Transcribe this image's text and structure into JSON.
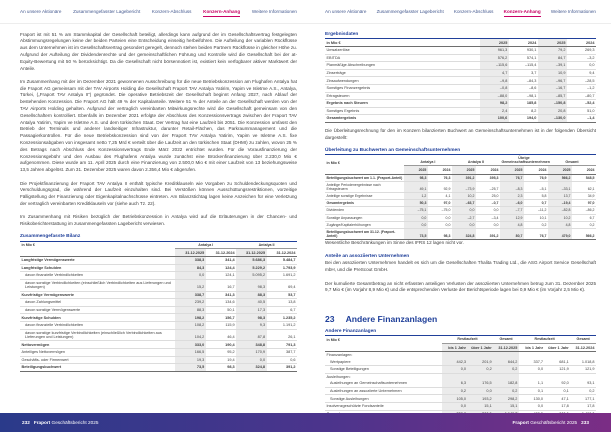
{
  "nav": {
    "tabs": [
      {
        "label": "An unsere Aktionäre",
        "active": false
      },
      {
        "label": "Zusammengefasster Lagebericht",
        "active": false
      },
      {
        "label": "Konzern-Abschluss",
        "active": false
      },
      {
        "label": "Konzern-Anhang",
        "active": true
      },
      {
        "label": "Weitere Informationen",
        "active": false
      }
    ]
  },
  "colors": {
    "accent_blue": "#20409a",
    "active_magenta": "#c80064",
    "footer_gradient_start": "#2a3a8a",
    "footer_gradient_end": "#7b2d85",
    "shaded_column": "#ebebeb"
  },
  "left_page": {
    "paragraphs": [
      "Fraport ist mit 51 % am Stammkapital der Gesellschaft beteiligt, allerdings kann aufgrund der im Gesellschaftsvertrag festgelegten Abstimmungsregelungen keine der beiden Parteien eine Entscheidung einseitig herbeiführen. Die Aufteilung der variablen Rückflüsse aus dem Unternehmen ist im Gesellschaftsvertrag gesondert geregelt, dennoch stehen beiden Partnern Rückflüsse in gleicher Höhe zu. Aufgrund der Aufteilung der Dividendenrechte und der gemeinschaftlichen Führung und Kontrolle wird die Gesellschaft bei der at-Equity-Bewertung mit 50 % berücksichtigt. Da die Gesellschaft nicht börsennotiert ist, existiert kein verfügbarer aktiver Marktwert der Anteile.",
      "Im Zusammenhang mit der im Dezember 2021 gewonnenen Ausschreibung für die neue Betriebskonzession am Flughafen Antalya hat die Fraport AG gemeinsam mit der TAV Airports Holding die Gesellschaft Fraport TAV Antalya Yatirim, Yapim ve Isletme A.S., Antalya, Türkei, („Fraport TAV Antalya II“) gegründet. Die operative Betriebszeit der Gesellschaft beginnt Anfang 2027, nach Ablauf der bestehenden Konzession. Die Fraport AG hält 49 % der Kapitalanteile. Weitere 51 % der Anteile an der Gesellschaft werden von der TAV Airports Holding gehalten. Aufgrund der vertraglich vereinbarten Mitwirkungsrechte wird die Gesellschaft gemeinsam von den Gesellschaftern kontrolliert. Ebenfalls im Dezember 2021 erfolgte der Abschluss des Konzessionsvertrags zwischen der Fraport TAV Antalya Yatirim, Yapim ve Isletme A.S. und dem türkischen Staat. Der Vertrag hat eine Laufzeit bis 2051. Die Konzession umfasst den Betrieb der Terminals und anderer landseitiger Infrastruktur, darunter Retail-Flächen, das Parkraummanagement und die Passagierkontrollen. Für die neue Betriebskonzession sind von der Fraport TAV Antalya Yatirim, Yapim ve Isletme A.S. fixe Konzessionsabgaben von insgesamt netto 7,25 Mrd € verteilt über die Laufzeit an den türkischen Staat (DHMI) zu zahlen, wovon 25 % des Betrags nach Abschluss des Konzessionsvertrags Ende März 2022 entrichtet wurden. Für die Vorausfinanzierung der Konzessionsgebühr und den Ausbau des Flughafens Antalya wurde zunächst eine Brückenfinanzierung über 2.230,0 Mio € aufgenommen. Diese wurde am 11. April 2025 durch eine Finanzierung von 2.500,0 Mio € mit einer Laufzeit von 13 beziehungsweise 13,5 Jahren abgelöst. Zum 31. Dezember 2025 waren davon 2.356,4 Mio € abgerufen.",
      "Die Projektfinanzierung der Fraport TAV Antalya II enthält typische Kreditklauseln wie Vorgaben zu Schuldendeckungsquoten und Verschuldungsgrad, die während der Laufzeit einzuhalten sind. Bei Verstößen können Ausschüttungsrestriktionen, vorzeitige Fälligstellung der Finanzierung oder Eigenkapitalnachschüsse eintreten. Am Bilanzstichtag lagen keine Anzeichen für eine Verletzung der vertraglich vereinbarten Kreditklauseln vor (siehe auch Tz. 22).",
      "Im Zusammenhang mit Risiken bezüglich der Betriebskonzession in Antalya wird auf die Erläuterungen in der Chancen- und Risikoberichterstattung im zusammengefassten Lagebericht verwiesen."
    ],
    "balance_table": {
      "title": "Zusammengefasste Bilanz",
      "unit_label": "in Mio €",
      "col_groups": [
        {
          "label": "Antalya I",
          "span": 2
        },
        {
          "label": "Antalya II",
          "span": 2
        }
      ],
      "col_headers": [
        "31.12.2025",
        "31.12.2024",
        "31.12.2025",
        "31.12.2024"
      ],
      "shaded_cols": [
        0,
        2
      ],
      "rows": [
        {
          "label": "Langfristige Vermögenswerte",
          "style": "bold",
          "values": [
            "338,3",
            "341,4",
            "5.686,3",
            "5.484,7"
          ]
        },
        {
          "label": "Langfristige Schulden",
          "style": "bold",
          "values": [
            "84,3",
            "124,4",
            "5.229,2",
            "1.793,9"
          ]
        },
        {
          "label": "davon finanzielle Verbindlichkeiten",
          "style": "indent",
          "values": [
            "0,0",
            "124,1",
            "5.095,2",
            "1.691,2"
          ]
        },
        {
          "label": "davon sonstige Verbindlichkeiten (einschließlich Verbindlichkeiten aus Lieferungen und Leistungen)",
          "style": "indent",
          "values": [
            "15,2",
            "16,7",
            "98,3",
            "69,4"
          ]
        },
        {
          "label": "Kurzfristige Vermögenswerte",
          "style": "bold",
          "values": [
            "338,7",
            "341,3",
            "88,3",
            "53,7"
          ]
        },
        {
          "label": "davon Zahlungsmittel",
          "style": "indent",
          "values": [
            "239,2",
            "134,6",
            "40,5",
            "13,8"
          ]
        },
        {
          "label": "davon sonstige Vermögenswerte",
          "style": "indent",
          "values": [
            "88,3",
            "50,1",
            "17,3",
            "6,7"
          ]
        },
        {
          "label": "Kurzfristige Schulden",
          "style": "bold",
          "values": [
            "198,2",
            "156,7",
            "98,3",
            "1.235,2"
          ]
        },
        {
          "label": "davon finanzielle Verbindlichkeiten",
          "style": "indent",
          "values": [
            "108,2",
            "115,9",
            "9,3",
            "1.191,2"
          ]
        },
        {
          "label": "davon sonstige kurzfristige Verbindlichkeiten (einschließlich Verbindlichkeiten aus Lieferungen und Leistungen)",
          "style": "indent",
          "values": [
            "104,2",
            "46,4",
            "87,8",
            "26,1"
          ]
        },
        {
          "label": "Nettovermögen",
          "style": "bold",
          "values": [
            "333,0",
            "190,4",
            "348,8",
            "791,3"
          ]
        },
        {
          "label": "Anteiliges Nettovermögen",
          "style": "",
          "values": [
            "166,5",
            "95,2",
            "170,9",
            "387,7"
          ]
        },
        {
          "label": "Geschäfts- oder Firmenwert",
          "style": "",
          "values": [
            "19,3",
            "19,4",
            "0,0",
            "0,6"
          ]
        },
        {
          "label": "Beteiligungsbuchwert",
          "style": "bold last",
          "values": [
            "73,5",
            "98,3",
            "324,8",
            "391,2"
          ]
        }
      ]
    }
  },
  "right_page": {
    "results_table": {
      "title": "Ergebnisdaten",
      "unit_label": "in Mio €",
      "col_headers": [
        "2025",
        "2024",
        "2025",
        "2024"
      ],
      "shaded_cols": [
        0,
        2
      ],
      "rows": [
        {
          "label": "Umsatzerlöse",
          "style": "",
          "values": [
            "961,3",
            "930,1",
            "79,2",
            "269,3"
          ]
        },
        {
          "label": "EBITDA",
          "style": "",
          "values": [
            "576,2",
            "574,1",
            "84,7",
            "–3,2"
          ]
        },
        {
          "label": "Planmäßige Abschreibungen",
          "style": "",
          "values": [
            "–115,6",
            "–115,4",
            "–39,1",
            "0,0"
          ]
        },
        {
          "label": "Zinserträge",
          "style": "",
          "values": [
            "4,7",
            "3,7",
            "10,9",
            "9,4"
          ]
        },
        {
          "label": "Zinsaufwendungen",
          "style": "",
          "values": [
            "–9,8",
            "–84,3",
            "–96,7",
            "–28,5"
          ]
        },
        {
          "label": "Sonstiges Finanzergebnis",
          "style": "",
          "values": [
            "–0,8",
            "–8,6",
            "–16,7",
            "–1,2"
          ]
        },
        {
          "label": "Ertragsteuern",
          "style": "",
          "values": [
            "–88,0",
            "–98,1",
            "–85,7",
            "–80,7"
          ]
        },
        {
          "label": "Ergebnis nach Steuern",
          "style": "bold",
          "values": [
            "98,2",
            "185,8",
            "–150,8",
            "–52,4"
          ]
        },
        {
          "label": "Sonstiges Ergebnis",
          "style": "",
          "values": [
            "2,4",
            "8,2",
            "20,8",
            "51,0"
          ]
        },
        {
          "label": "Gesamtergebnis",
          "style": "bold last",
          "values": [
            "100,6",
            "194,0",
            "–130,0",
            "–1,4"
          ]
        }
      ]
    },
    "reconciliation_intro": "Die Überleitungsrechnung für den im Konzern bilanzierten Buchwert an Gemeinschaftsunternehmen ist in der folgenden Übersicht dargestellt:",
    "reconciliation_table": {
      "title": "Überleitung zu Buchwerten an Gemeinschaftsunternehmen",
      "unit_label": "in Mio €",
      "col_groups": [
        {
          "label": "Antalya I",
          "span": 2
        },
        {
          "label": "Antalya II",
          "span": 2
        },
        {
          "label": "Übrige Gemeinschaftsunternehmen",
          "span": 2
        },
        {
          "label": "Gesamt",
          "span": 2
        }
      ],
      "col_headers": [
        "2025",
        "2024",
        "2025",
        "2024",
        "2025",
        "2024",
        "2025",
        "2024"
      ],
      "shaded_cols": [
        0,
        2,
        4,
        6
      ],
      "rows": [
        {
          "label": "Beteiligungsbuchwert am 1.1. (Fraport-Anteil)",
          "style": "bold",
          "values": [
            "98,3",
            "76,3",
            "391,2",
            "395,3",
            "76,7",
            "76,9",
            "566,2",
            "548,5"
          ]
        },
        {
          "label": "Anteilige Periodenergebnisse nach Ertragsteuern",
          "style": "",
          "values": [
            "49,1",
            "92,9",
            "–73,9",
            "–25,7",
            "–8,3",
            "–5,1",
            "–33,1",
            "62,1"
          ]
        },
        {
          "label": "Anteilige sonstige Ergebnisse",
          "style": "",
          "values": [
            "1,2",
            "4,1",
            "10,2",
            "25,0",
            "2,3",
            "5,8",
            "13,7",
            "34,9"
          ]
        },
        {
          "label": "Gesamtergebnis",
          "style": "bold",
          "values": [
            "50,3",
            "97,0",
            "–63,7",
            "–0,7",
            "–6,0",
            "0,7",
            "–19,4",
            "97,0"
          ]
        },
        {
          "label": "Dividenden",
          "style": "",
          "values": [
            "–75,1",
            "–75,0",
            "0,0",
            "0,0",
            "–7,7",
            "–11,2",
            "–82,8",
            "–86,2"
          ]
        },
        {
          "label": "Sonstige Anpassungen",
          "style": "",
          "values": [
            "0,0",
            "0,0",
            "–2,7",
            "–3,4",
            "12,9",
            "10,1",
            "10,2",
            "6,7"
          ]
        },
        {
          "label": "Zugänge/Kapitalerhöhungen",
          "style": "",
          "values": [
            "0,0",
            "0,0",
            "0,0",
            "0,0",
            "4,8",
            "0,2",
            "4,8",
            "0,2"
          ]
        },
        {
          "label": "Beteiligungsbuchwert am 31.12. (Fraport-Anteil)",
          "style": "bold last",
          "values": [
            "73,5",
            "98,3",
            "324,8",
            "391,2",
            "80,7",
            "76,7",
            "479,0",
            "566,2"
          ]
        }
      ]
    },
    "ifrs_note": "Wesentliche Beschränkungen im Sinne des IFRS 12 lagen nicht vor.",
    "associates": {
      "heading": "Anteile an assoziierten Unternehmen",
      "paragraphs": [
        "Bei den assoziierten Unternehmen handelt es sich um die Gesellschaften Thalita Trading Ltd., die ASG Airport Service Gesellschaft mbH, und die PreScout GmbH.",
        "Der kumulierte Gesamtbetrag an nicht erfassten anteiligen Verlusten der assoziierten Unternehmen betrug zum 31. Dezember 2025 9,7 Mio € (im Vorjahr 8,9 Mio €) und die entsprechenden Verluste der Berichtsperiode lagen bei 0,9 Mio € (im Vorjahr 2,5 Mio €)."
      ]
    },
    "section": {
      "number": "23",
      "title": "Andere Finanzanlagen"
    },
    "other_financial_table": {
      "title": "Andere Finanzanlagen",
      "unit_label": "in Mio €",
      "col_groups": [
        {
          "label": "Restlaufzeit",
          "span": 2
        },
        {
          "label": "Gesamt",
          "span": 1
        },
        {
          "label": "Restlaufzeit",
          "span": 2
        },
        {
          "label": "Gesamt",
          "span": 1
        }
      ],
      "col_headers": [
        "bis 1 Jahr",
        "über 1 Jahr",
        "31.12.2025",
        "bis 1 Jahr",
        "über 1 Jahr",
        "31.12.2024"
      ],
      "shaded_cols": [
        0,
        1,
        2
      ],
      "rows": [
        {
          "label": "Finanzanlagen:",
          "style": "group",
          "values": []
        },
        {
          "label": "Wertpapiere",
          "style": "indent",
          "values": [
            "442,3",
            "201,9",
            "644,2",
            "337,7",
            "681,1",
            "1.018,8"
          ]
        },
        {
          "label": "Sonstige Beteiligungen",
          "style": "indent",
          "values": [
            "0,0",
            "0,2",
            "0,2",
            "0,0",
            "121,9",
            "121,9"
          ]
        },
        {
          "label": "Ausleihungen:",
          "style": "group",
          "values": []
        },
        {
          "label": "Ausleihungen an Gemeinschaftsunternehmen",
          "style": "indent",
          "values": [
            "6,3",
            "176,5",
            "182,8",
            "1,1",
            "92,0",
            "93,1"
          ]
        },
        {
          "label": "Ausleihungen an assoziierte Unternehmen",
          "style": "indent",
          "values": [
            "0,2",
            "0,0",
            "0,2",
            "0,1",
            "0,1",
            "0,2"
          ]
        },
        {
          "label": "Sonstige Ausleihungen",
          "style": "indent",
          "values": [
            "105,0",
            "193,2",
            "298,2",
            "130,0",
            "47,1",
            "177,1"
          ]
        },
        {
          "label": "Insolvenzgeschützte Fondsanteile",
          "style": "",
          "values": [
            "0,0",
            "15,1",
            "15,1",
            "0,0",
            "17,8",
            "17,8"
          ]
        },
        {
          "label": "Gesamt",
          "style": "bold last",
          "values": [
            "553,8",
            "586,9",
            "1.140,7",
            "469,0",
            "960,0",
            "1.429,0"
          ]
        }
      ]
    }
  },
  "footer": {
    "brand": "Fraport",
    "report": "Geschäftsbericht 2025",
    "left_page_number": "232",
    "right_page_number": "233"
  }
}
